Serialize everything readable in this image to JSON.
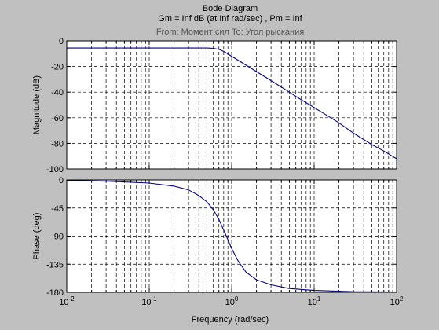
{
  "window": {
    "background": "#c0c0c0"
  },
  "chart_data": {
    "type": "line",
    "title": "Bode Diagram",
    "subtitle": "Gm = Inf dB (at Inf rad/sec) ,  Pm = Inf",
    "io_label": "From:  Момент сил  To:  Угол рыскания",
    "xlabel": "Frequency  (rad/sec)",
    "x_scale": "log",
    "xlim": [
      0.01,
      100
    ],
    "x_ticks": [
      {
        "value": 0.01,
        "base": "10",
        "exp": "-2"
      },
      {
        "value": 0.1,
        "base": "10",
        "exp": "-1"
      },
      {
        "value": 1,
        "base": "10",
        "exp": "0"
      },
      {
        "value": 10,
        "base": "10",
        "exp": "1"
      },
      {
        "value": 100,
        "base": "10",
        "exp": "2"
      }
    ],
    "grid": true,
    "line_color": "#00007f",
    "panels": [
      {
        "name": "magnitude",
        "ylabel": "Magnitude (dB)",
        "ylim": [
          -100,
          0
        ],
        "y_ticks": [
          0,
          -20,
          -40,
          -60,
          -80,
          -100
        ],
        "y_tick_labels": [
          "0",
          "-20",
          "-40",
          "-60",
          "-80",
          "-100"
        ],
        "points": [
          [
            0.01,
            -5.6
          ],
          [
            0.1,
            -5.6
          ],
          [
            0.3,
            -5.6
          ],
          [
            0.5,
            -5.6
          ],
          [
            0.6,
            -5.8
          ],
          [
            0.7,
            -6.6
          ],
          [
            0.8,
            -8.2
          ],
          [
            1,
            -12
          ],
          [
            1.5,
            -19
          ],
          [
            2,
            -24
          ],
          [
            3,
            -31
          ],
          [
            5,
            -40
          ],
          [
            7,
            -46
          ],
          [
            10,
            -52
          ],
          [
            20,
            -64
          ],
          [
            30,
            -72
          ],
          [
            50,
            -81
          ],
          [
            70,
            -86
          ],
          [
            100,
            -92
          ]
        ]
      },
      {
        "name": "phase",
        "ylabel": "Phase (deg)",
        "ylim": [
          -180,
          0
        ],
        "y_ticks": [
          0,
          -45,
          -90,
          -135,
          -180
        ],
        "y_tick_labels": [
          "0",
          "-45",
          "-90",
          "-135",
          "-180"
        ],
        "points": [
          [
            0.01,
            -0.8
          ],
          [
            0.03,
            -2
          ],
          [
            0.1,
            -5
          ],
          [
            0.2,
            -10
          ],
          [
            0.3,
            -16
          ],
          [
            0.4,
            -25
          ],
          [
            0.5,
            -35
          ],
          [
            0.6,
            -48
          ],
          [
            0.7,
            -63
          ],
          [
            0.8,
            -80
          ],
          [
            1,
            -110
          ],
          [
            1.2,
            -130
          ],
          [
            1.5,
            -148
          ],
          [
            2,
            -160
          ],
          [
            3,
            -168
          ],
          [
            5,
            -174
          ],
          [
            10,
            -177
          ],
          [
            30,
            -179
          ],
          [
            100,
            -179.5
          ]
        ]
      }
    ]
  }
}
